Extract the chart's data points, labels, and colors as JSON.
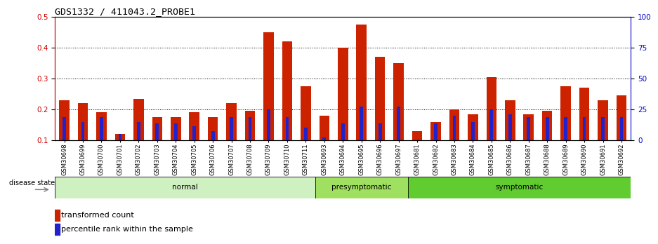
{
  "title": "GDS1332 / 411043.2_PROBE1",
  "samples": [
    "GSM30698",
    "GSM30699",
    "GSM30700",
    "GSM30701",
    "GSM30702",
    "GSM30703",
    "GSM30704",
    "GSM30705",
    "GSM30706",
    "GSM30707",
    "GSM30708",
    "GSM30709",
    "GSM30710",
    "GSM30711",
    "GSM30693",
    "GSM30694",
    "GSM30695",
    "GSM30696",
    "GSM30697",
    "GSM30681",
    "GSM30682",
    "GSM30683",
    "GSM30684",
    "GSM30685",
    "GSM30686",
    "GSM30687",
    "GSM30688",
    "GSM30689",
    "GSM30690",
    "GSM30691",
    "GSM30692"
  ],
  "red_values": [
    0.23,
    0.22,
    0.19,
    0.12,
    0.235,
    0.175,
    0.175,
    0.19,
    0.175,
    0.22,
    0.195,
    0.45,
    0.42,
    0.275,
    0.18,
    0.4,
    0.475,
    0.37,
    0.35,
    0.13,
    0.16,
    0.2,
    0.185,
    0.305,
    0.23,
    0.185,
    0.195,
    0.275,
    0.27,
    0.23,
    0.245
  ],
  "blue_values": [
    0.175,
    0.16,
    0.175,
    0.12,
    0.16,
    0.155,
    0.155,
    0.145,
    0.13,
    0.175,
    0.175,
    0.2,
    0.175,
    0.14,
    0.11,
    0.155,
    0.21,
    0.155,
    0.21,
    0.085,
    0.155,
    0.18,
    0.16,
    0.2,
    0.185,
    0.175,
    0.175,
    0.175,
    0.175,
    0.175,
    0.175
  ],
  "groups": [
    {
      "label": "normal",
      "start": 0,
      "end": 13,
      "color": "#cff0c0"
    },
    {
      "label": "presymptomatic",
      "start": 14,
      "end": 18,
      "color": "#a0e060"
    },
    {
      "label": "symptomatic",
      "start": 19,
      "end": 30,
      "color": "#60cc30"
    }
  ],
  "ylim_left": [
    0.1,
    0.5
  ],
  "ylim_right": [
    0,
    100
  ],
  "yticks_left": [
    0.1,
    0.2,
    0.3,
    0.4,
    0.5
  ],
  "yticks_right": [
    0,
    25,
    50,
    75,
    100
  ],
  "left_axis_color": "#cc0000",
  "right_axis_color": "#0000cc",
  "red_color": "#cc2200",
  "blue_color": "#2222cc",
  "bar_width": 0.55,
  "blue_bar_width": 0.18,
  "legend_red": "transformed count",
  "legend_blue": "percentile rank within the sample",
  "disease_state_label": "disease state",
  "grid_lines": [
    0.2,
    0.3,
    0.4
  ]
}
